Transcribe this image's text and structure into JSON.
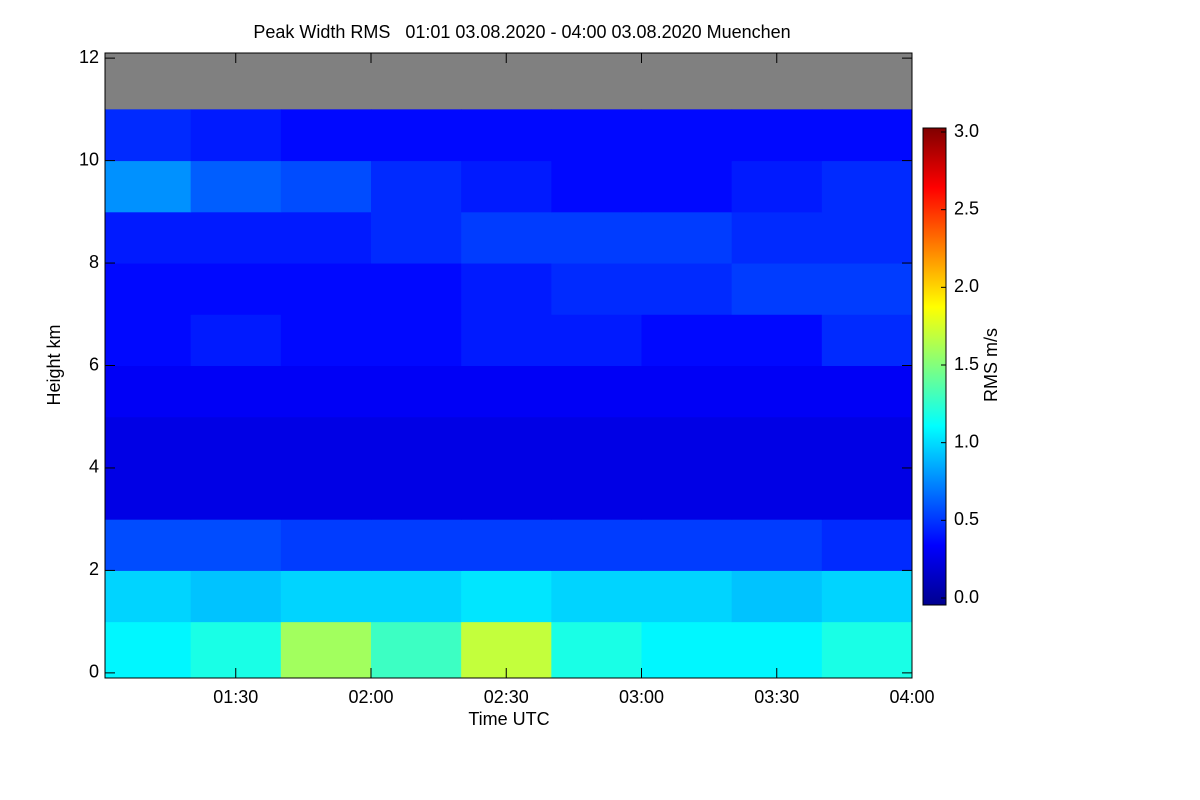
{
  "chart_data": {
    "type": "heatmap",
    "title": "Peak Width RMS   01:01 03.08.2020 - 04:00 03.08.2020 Muenchen",
    "x_label": "Time UTC",
    "y_label": "Height km",
    "colorbar_label": "RMS m/s",
    "x": [
      "01:01",
      "01:20",
      "01:40",
      "02:00",
      "02:20",
      "02:40",
      "03:00",
      "03:20",
      "03:40"
    ],
    "y": [
      0,
      1,
      2,
      3,
      4,
      5,
      6,
      7,
      8,
      9,
      10,
      11
    ],
    "values": [
      [
        1.1,
        1.2,
        1.6,
        1.3,
        1.7,
        1.2,
        1.1,
        1.1,
        1.2
      ],
      [
        1.0,
        0.95,
        1.0,
        1.0,
        1.05,
        1.0,
        1.0,
        0.95,
        1.0
      ],
      [
        0.6,
        0.6,
        0.55,
        0.55,
        0.55,
        0.55,
        0.55,
        0.55,
        0.5
      ],
      [
        0.3,
        0.3,
        0.3,
        0.3,
        0.3,
        0.3,
        0.3,
        0.3,
        0.3
      ],
      [
        0.3,
        0.3,
        0.3,
        0.3,
        0.3,
        0.3,
        0.3,
        0.3,
        0.3
      ],
      [
        0.35,
        0.35,
        0.35,
        0.35,
        0.35,
        0.35,
        0.35,
        0.35,
        0.35
      ],
      [
        0.4,
        0.45,
        0.4,
        0.4,
        0.45,
        0.45,
        0.4,
        0.4,
        0.5
      ],
      [
        0.4,
        0.4,
        0.4,
        0.4,
        0.45,
        0.5,
        0.5,
        0.55,
        0.55
      ],
      [
        0.45,
        0.45,
        0.45,
        0.5,
        0.55,
        0.55,
        0.55,
        0.5,
        0.5
      ],
      [
        0.8,
        0.65,
        0.6,
        0.5,
        0.45,
        0.4,
        0.4,
        0.45,
        0.5
      ],
      [
        0.5,
        0.45,
        0.4,
        0.4,
        0.4,
        0.4,
        0.4,
        0.4,
        0.4
      ],
      [
        null,
        null,
        null,
        null,
        null,
        null,
        null,
        null,
        null
      ]
    ],
    "xlim": [
      "01:01",
      "04:00"
    ],
    "xticks": [
      "01:30",
      "02:00",
      "02:30",
      "03:00",
      "03:30",
      "04:00"
    ],
    "ylim": [
      -0.1,
      12.1
    ],
    "yticks": [
      0,
      2,
      4,
      6,
      8,
      10,
      12
    ],
    "clim": [
      0,
      3
    ],
    "cticks": [
      {
        "value": 0,
        "label": "0.0"
      },
      {
        "value": 0.5,
        "label": "0.5"
      },
      {
        "value": 1,
        "label": "1.0"
      },
      {
        "value": 1.5,
        "label": "1.5"
      },
      {
        "value": 2,
        "label": "2.0"
      },
      {
        "value": 2.5,
        "label": "2.5"
      },
      {
        "value": 3,
        "label": "3.0"
      }
    ],
    "colormap": "jet",
    "nodata_color": "#808080"
  }
}
